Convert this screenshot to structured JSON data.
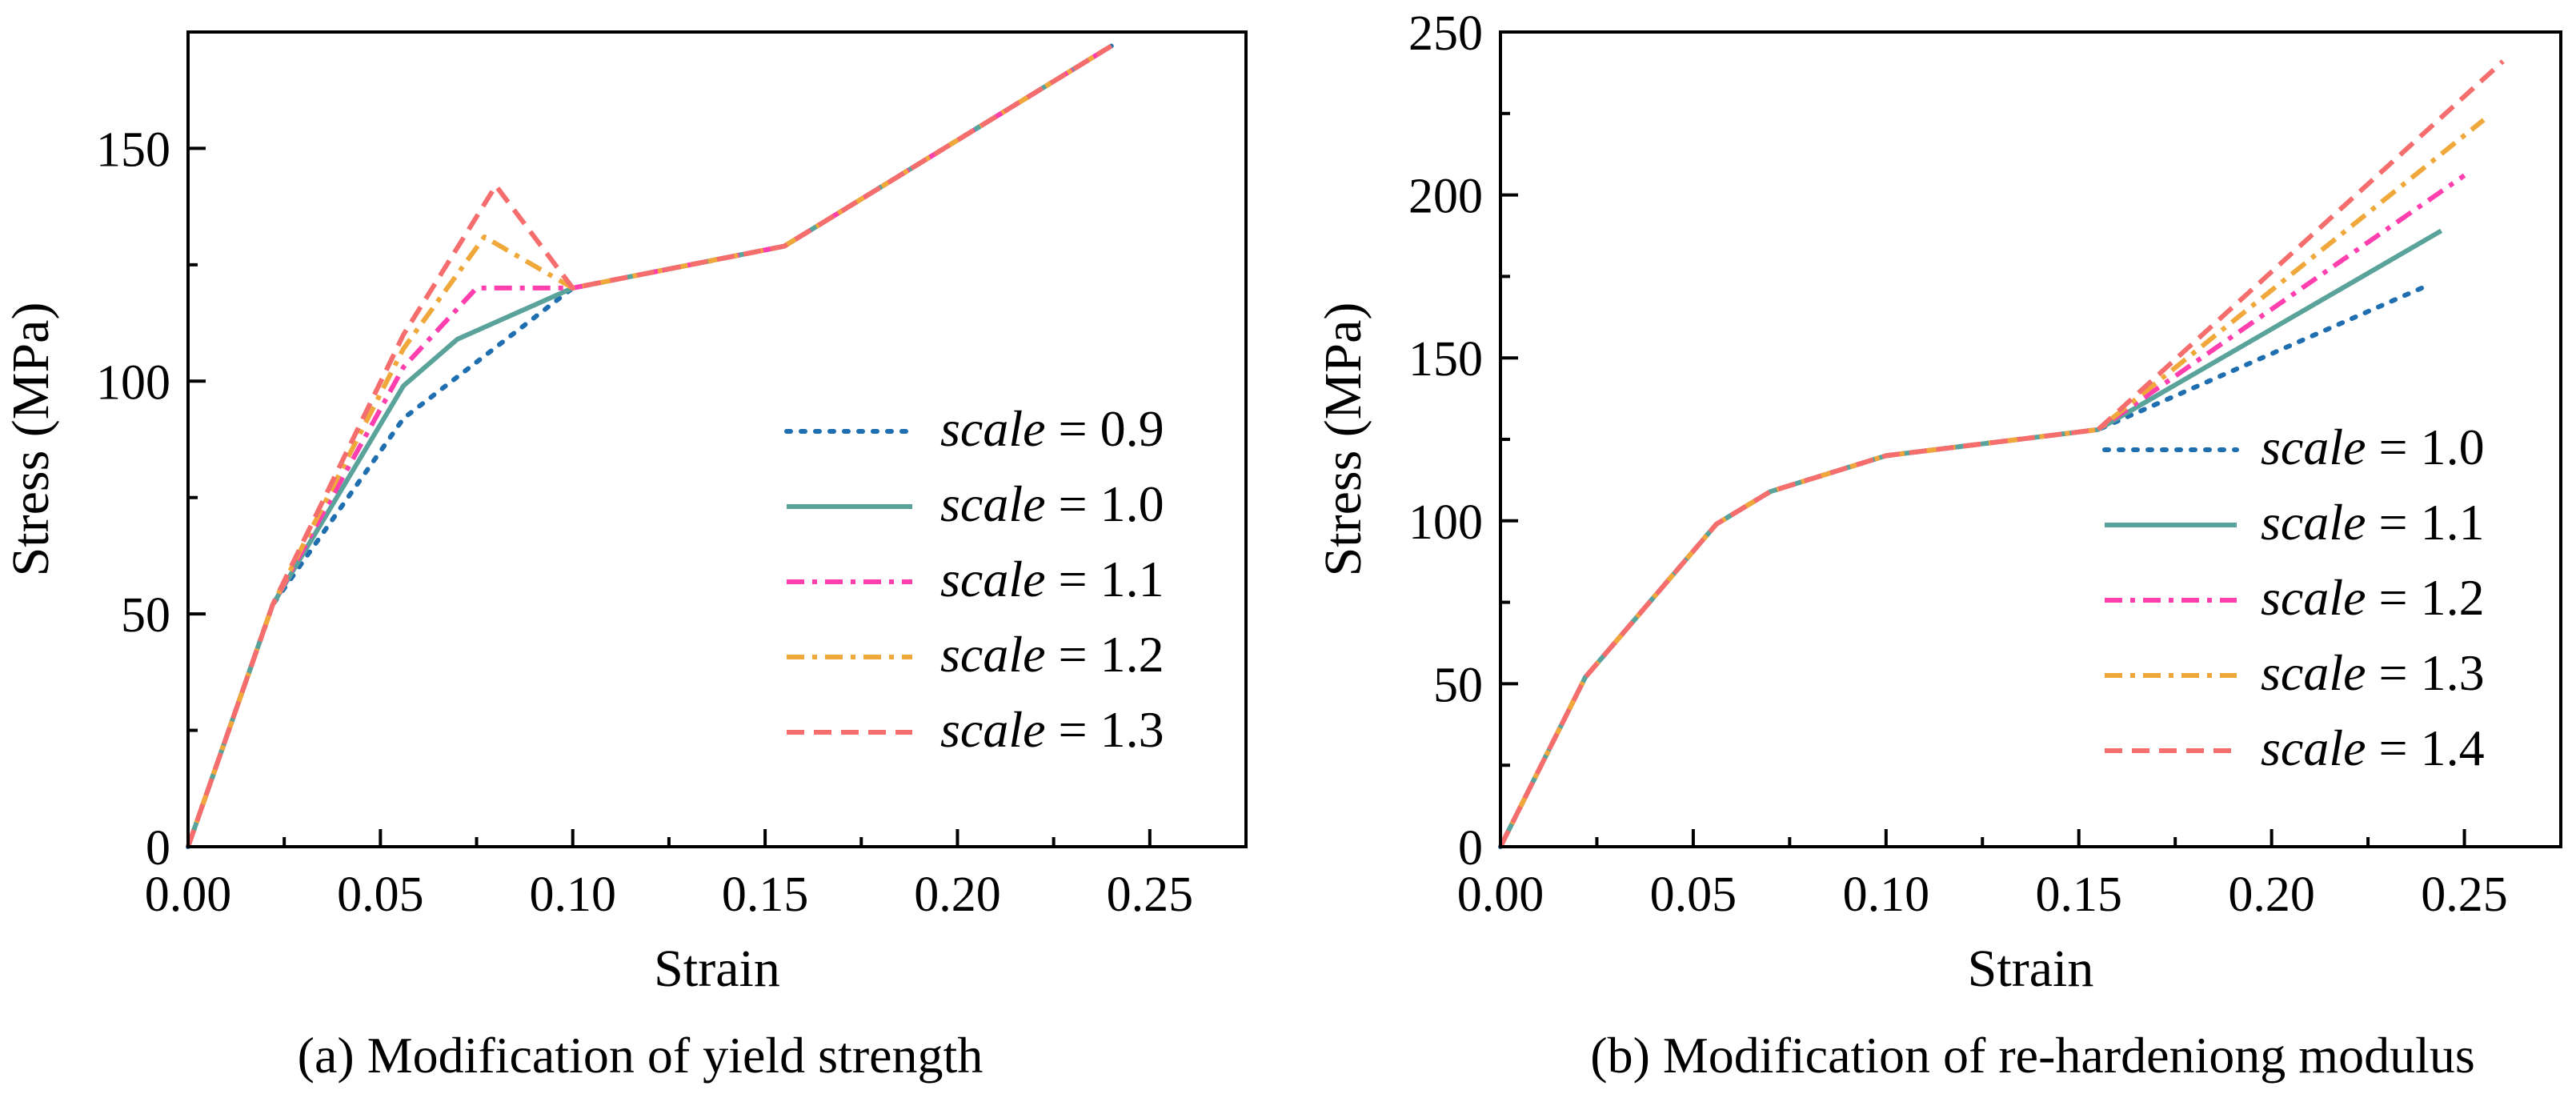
{
  "chart_data": [
    {
      "type": "line",
      "caption": "(a) Modification of yield strength",
      "xlabel": "Strain",
      "ylabel": "Stress (MPa)",
      "xlim": [
        0,
        0.275
      ],
      "ylim": [
        0,
        175
      ],
      "xticks": [
        0,
        0.05,
        0.1,
        0.15,
        0.2,
        0.25
      ],
      "xtick_labels": [
        "0.00",
        "0.05",
        "0.10",
        "0.15",
        "0.20",
        "0.25"
      ],
      "yticks": [
        0,
        50,
        100,
        150
      ],
      "ytick_labels": [
        "0",
        "50",
        "100",
        "150"
      ],
      "grid": false,
      "legend_position": "center-right",
      "series": [
        {
          "name": "scale = 0.9",
          "scale_word": "scale",
          "equals_value": " = 0.9",
          "color": "#1f6fb0",
          "dash": "dots",
          "x": [
            0,
            0.022,
            0.056,
            0.1,
            0.155,
            0.24
          ],
          "y": [
            0,
            52,
            92,
            120,
            129,
            172
          ]
        },
        {
          "name": "scale = 1.0",
          "scale_word": "scale",
          "equals_value": " = 1.0",
          "color": "#5aa39a",
          "dash": "solid",
          "x": [
            0,
            0.022,
            0.056,
            0.07,
            0.1,
            0.155,
            0.24
          ],
          "y": [
            0,
            52,
            99,
            109,
            120,
            129,
            172
          ]
        },
        {
          "name": "scale = 1.1",
          "scale_word": "scale",
          "equals_value": " = 1.1",
          "color": "#ff3fae",
          "dash": "dashdot",
          "x": [
            0,
            0.022,
            0.056,
            0.075,
            0.1,
            0.155,
            0.24
          ],
          "y": [
            0,
            52,
            103,
            120,
            120,
            129,
            172
          ]
        },
        {
          "name": "scale = 1.2",
          "scale_word": "scale",
          "equals_value": " = 1.2",
          "color": "#f0a83a",
          "dash": "dashdot",
          "x": [
            0,
            0.022,
            0.056,
            0.077,
            0.1,
            0.155,
            0.24
          ],
          "y": [
            0,
            52,
            107,
            131,
            120,
            129,
            172
          ]
        },
        {
          "name": "scale = 1.3",
          "scale_word": "scale",
          "equals_value": " = 1.3",
          "color": "#f56d6d",
          "dash": "dashed",
          "x": [
            0,
            0.022,
            0.056,
            0.08,
            0.1,
            0.155,
            0.24
          ],
          "y": [
            0,
            52,
            110,
            142,
            120,
            129,
            172
          ]
        }
      ]
    },
    {
      "type": "line",
      "caption": "(b) Modification of re-hardeniong modulus",
      "xlabel": "Strain",
      "ylabel": "Stress (MPa)",
      "xlim": [
        0,
        0.275
      ],
      "ylim": [
        0,
        250
      ],
      "xticks": [
        0,
        0.05,
        0.1,
        0.15,
        0.2,
        0.25
      ],
      "xtick_labels": [
        "0.00",
        "0.05",
        "0.10",
        "0.15",
        "0.20",
        "0.25"
      ],
      "yticks": [
        0,
        50,
        100,
        150,
        200,
        250
      ],
      "ytick_labels": [
        "0",
        "50",
        "100",
        "150",
        "200",
        "250"
      ],
      "grid": false,
      "legend_position": "bottom-right",
      "series": [
        {
          "name": "scale = 1.0",
          "scale_word": "scale",
          "equals_value": " = 1.0",
          "color": "#1f6fb0",
          "dash": "dots",
          "x": [
            0,
            0.022,
            0.056,
            0.07,
            0.1,
            0.155,
            0.24
          ],
          "y": [
            0,
            52,
            99,
            109,
            120,
            128,
            172
          ]
        },
        {
          "name": "scale = 1.1",
          "scale_word": "scale",
          "equals_value": " = 1.1",
          "color": "#5aa39a",
          "dash": "solid",
          "x": [
            0,
            0.022,
            0.056,
            0.07,
            0.1,
            0.155,
            0.244
          ],
          "y": [
            0,
            52,
            99,
            109,
            120,
            128,
            189
          ]
        },
        {
          "name": "scale = 1.2",
          "scale_word": "scale",
          "equals_value": " = 1.2",
          "color": "#ff3fae",
          "dash": "dashdot",
          "x": [
            0,
            0.022,
            0.056,
            0.07,
            0.1,
            0.155,
            0.25
          ],
          "y": [
            0,
            52,
            99,
            109,
            120,
            128,
            206
          ]
        },
        {
          "name": "scale = 1.3",
          "scale_word": "scale",
          "equals_value": " = 1.3",
          "color": "#f0a83a",
          "dash": "dashdot",
          "x": [
            0,
            0.022,
            0.056,
            0.07,
            0.1,
            0.155,
            0.255
          ],
          "y": [
            0,
            52,
            99,
            109,
            120,
            128,
            223
          ]
        },
        {
          "name": "scale = 1.4",
          "scale_word": "scale",
          "equals_value": " = 1.4",
          "color": "#f56d6d",
          "dash": "dashed",
          "x": [
            0,
            0.022,
            0.056,
            0.07,
            0.1,
            0.155,
            0.26
          ],
          "y": [
            0,
            52,
            99,
            109,
            120,
            128,
            241
          ]
        }
      ]
    }
  ]
}
